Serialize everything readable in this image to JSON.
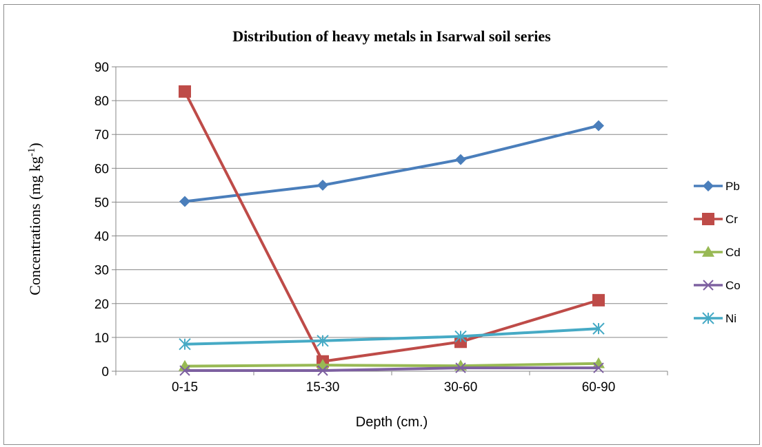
{
  "chart_data": {
    "type": "line",
    "title": "Distribution of heavy metals in Isarwal soil series",
    "xlabel": "Depth (cm.)",
    "ylabel": {
      "prefix": "Concentrations (mg kg",
      "sup": "-1",
      "suffix": ")"
    },
    "categories": [
      "0-15",
      "15-30",
      "30-60",
      "60-90"
    ],
    "ylim": [
      0,
      90
    ],
    "yticks": [
      "0",
      "10",
      "20",
      "30",
      "40",
      "50",
      "60",
      "70",
      "80",
      "90"
    ],
    "grid": "horizontal",
    "legend_position": "right",
    "series": [
      {
        "name": "Pb",
        "values": [
          50.2,
          55.0,
          62.6,
          72.6
        ],
        "color": "#4a7ebb",
        "marker": "diamond"
      },
      {
        "name": "Cr",
        "values": [
          82.7,
          2.9,
          8.7,
          21.0
        ],
        "color": "#be4b48",
        "marker": "square"
      },
      {
        "name": "Cd",
        "values": [
          1.5,
          1.8,
          1.6,
          2.3
        ],
        "color": "#98b954",
        "marker": "triangle"
      },
      {
        "name": "Co",
        "values": [
          0.2,
          0.2,
          1.0,
          1.0
        ],
        "color": "#7d60a0",
        "marker": "x"
      },
      {
        "name": "Ni",
        "values": [
          8.0,
          9.0,
          10.3,
          12.6
        ],
        "color": "#46aac5",
        "marker": "star"
      }
    ]
  }
}
